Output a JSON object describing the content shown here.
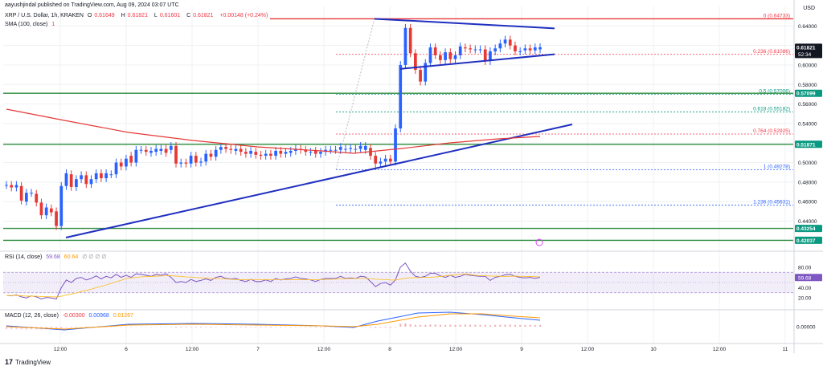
{
  "header": {
    "author": "aayushjindal published on TradingView.com, Aug 09, 2024 03:07 UTC",
    "symbol": "XRP / U.S. Dollar, 1h, KRAKEN",
    "ohlc": [
      {
        "k": "O",
        "v": "0.61649"
      },
      {
        "k": "H",
        "v": "0.61821"
      },
      {
        "k": "L",
        "v": "0.61601"
      },
      {
        "k": "C",
        "v": "0.61821"
      }
    ],
    "change": "+0.00148 (+0.24%)",
    "sma_label": "SMA (100, close)",
    "sma_value": "1",
    "currency": "USD"
  },
  "price_axis": {
    "ticks": [
      "0.64000",
      "0.62000",
      "0.60000",
      "0.58000",
      "0.56000",
      "0.54000",
      "0.52000",
      "0.50000",
      "0.48000",
      "0.46000",
      "0.44000",
      "0.42000"
    ],
    "badges": [
      {
        "text": "0.61821",
        "sub": "52:34",
        "color": "#131722",
        "price": 0.61821
      },
      {
        "text": "0.57099",
        "color": "#089981",
        "price": 0.57099
      },
      {
        "text": "0.51871",
        "color": "#089981",
        "price": 0.51871
      },
      {
        "text": "0.43254",
        "color": "#089981",
        "price": 0.43254
      },
      {
        "text": "0.42037",
        "color": "#089981",
        "price": 0.42037
      }
    ]
  },
  "time_axis": {
    "labels": [
      "12:00",
      "6",
      "12:00",
      "7",
      "12:00",
      "8",
      "12:00",
      "9",
      "12:00",
      "10",
      "12:00",
      "11"
    ]
  },
  "fib_levels": [
    {
      "label": "0 (0.64733)",
      "price": 0.64733,
      "color": "#f23645"
    },
    {
      "label": "0.236 (0.61086)",
      "price": 0.61086,
      "color": "#f23645"
    },
    {
      "label": "0.5 (0.57006)",
      "price": 0.57006,
      "color": "#089981"
    },
    {
      "label": "0.618 (0.55182)",
      "price": 0.55182,
      "color": "#089981"
    },
    {
      "label": "0.764 (0.52925)",
      "price": 0.52925,
      "color": "#f23645"
    },
    {
      "label": "1 (0.49278)",
      "price": 0.49278,
      "color": "#2962ff"
    },
    {
      "label": "1.236 (0.45631)",
      "price": 0.45631,
      "color": "#2962ff"
    }
  ],
  "rsi": {
    "label": "RSI (14, close)",
    "value": "59.68",
    "value2": "60.64",
    "ticks": [
      "80.00",
      "60.00",
      "40.00",
      "20.00"
    ]
  },
  "macd": {
    "label": "MACD (12, 26, close)",
    "v1": "-0.00300",
    "v2": "0.00968",
    "v3": "0.01267",
    "ticks": [
      "0.00000"
    ]
  },
  "brand": "TradingView",
  "chart_data": {
    "type": "candlestick",
    "title": "XRP / U.S. Dollar, 1h, KRAKEN",
    "x_labels": [
      "12:00",
      "6",
      "12:00",
      "7",
      "12:00",
      "8",
      "12:00",
      "9",
      "12:00",
      "10",
      "12:00",
      "11"
    ],
    "ylim": [
      0.41,
      0.66
    ],
    "grid": true,
    "horizontal_lines": [
      0.57099,
      0.51871,
      0.43254,
      0.42037
    ],
    "resistance_line_price": 0.6473,
    "candles": [
      {
        "o": 0.477,
        "c": 0.477
      },
      {
        "o": 0.477,
        "c": 0.4745
      },
      {
        "o": 0.4745,
        "c": 0.477
      },
      {
        "o": 0.476,
        "c": 0.461
      },
      {
        "o": 0.46,
        "c": 0.469
      },
      {
        "o": 0.469,
        "c": 0.469
      },
      {
        "o": 0.468,
        "c": 0.459
      },
      {
        "o": 0.459,
        "c": 0.446
      },
      {
        "o": 0.446,
        "c": 0.454
      },
      {
        "o": 0.453,
        "c": 0.449
      },
      {
        "o": 0.45,
        "c": 0.435
      },
      {
        "o": 0.435,
        "c": 0.476
      },
      {
        "o": 0.476,
        "c": 0.489
      },
      {
        "o": 0.488,
        "c": 0.475
      },
      {
        "o": 0.475,
        "c": 0.483
      },
      {
        "o": 0.483,
        "c": 0.487
      },
      {
        "o": 0.487,
        "c": 0.478
      },
      {
        "o": 0.478,
        "c": 0.483
      },
      {
        "o": 0.483,
        "c": 0.489
      },
      {
        "o": 0.489,
        "c": 0.484
      },
      {
        "o": 0.484,
        "c": 0.489
      },
      {
        "o": 0.488,
        "c": 0.488
      },
      {
        "o": 0.488,
        "c": 0.5
      },
      {
        "o": 0.5,
        "c": 0.496
      },
      {
        "o": 0.496,
        "c": 0.504
      },
      {
        "o": 0.507,
        "c": 0.5
      },
      {
        "o": 0.5,
        "c": 0.513
      },
      {
        "o": 0.513,
        "c": 0.513
      },
      {
        "o": 0.513,
        "c": 0.511
      },
      {
        "o": 0.51,
        "c": 0.512
      },
      {
        "o": 0.511,
        "c": 0.514
      },
      {
        "o": 0.512,
        "c": 0.514
      },
      {
        "o": 0.514,
        "c": 0.51
      },
      {
        "o": 0.513,
        "c": 0.517
      },
      {
        "o": 0.517,
        "c": 0.499
      },
      {
        "o": 0.499,
        "c": 0.5
      },
      {
        "o": 0.5,
        "c": 0.499
      },
      {
        "o": 0.499,
        "c": 0.507
      },
      {
        "o": 0.507,
        "c": 0.5
      },
      {
        "o": 0.5,
        "c": 0.501
      },
      {
        "o": 0.501,
        "c": 0.509
      },
      {
        "o": 0.509,
        "c": 0.506
      },
      {
        "o": 0.506,
        "c": 0.513
      },
      {
        "o": 0.513,
        "c": 0.516
      },
      {
        "o": 0.516,
        "c": 0.514
      },
      {
        "o": 0.514,
        "c": 0.513
      },
      {
        "o": 0.512,
        "c": 0.514
      },
      {
        "o": 0.514,
        "c": 0.511
      },
      {
        "o": 0.511,
        "c": 0.509
      },
      {
        "o": 0.509,
        "c": 0.512
      },
      {
        "o": 0.511,
        "c": 0.508
      },
      {
        "o": 0.508,
        "c": 0.507
      },
      {
        "o": 0.507,
        "c": 0.509
      },
      {
        "o": 0.509,
        "c": 0.507
      },
      {
        "o": 0.507,
        "c": 0.512
      },
      {
        "o": 0.512,
        "c": 0.509
      },
      {
        "o": 0.509,
        "c": 0.511
      },
      {
        "o": 0.51,
        "c": 0.512
      },
      {
        "o": 0.512,
        "c": 0.514
      },
      {
        "o": 0.514,
        "c": 0.513
      },
      {
        "o": 0.513,
        "c": 0.511
      },
      {
        "o": 0.511,
        "c": 0.511
      },
      {
        "o": 0.512,
        "c": 0.509
      },
      {
        "o": 0.509,
        "c": 0.511
      },
      {
        "o": 0.511,
        "c": 0.513
      },
      {
        "o": 0.513,
        "c": 0.513
      },
      {
        "o": 0.513,
        "c": 0.513
      },
      {
        "o": 0.513,
        "c": 0.516
      },
      {
        "o": 0.514,
        "c": 0.514
      },
      {
        "o": 0.514,
        "c": 0.515
      },
      {
        "o": 0.514,
        "c": 0.514
      },
      {
        "o": 0.514,
        "c": 0.517
      },
      {
        "o": 0.513,
        "c": 0.517
      },
      {
        "o": 0.515,
        "c": 0.507
      },
      {
        "o": 0.507,
        "c": 0.499
      },
      {
        "o": 0.499,
        "c": 0.501
      },
      {
        "o": 0.501,
        "c": 0.504
      },
      {
        "o": 0.504,
        "c": 0.501
      },
      {
        "o": 0.501,
        "c": 0.535
      },
      {
        "o": 0.535,
        "c": 0.6
      },
      {
        "o": 0.6,
        "c": 0.638
      },
      {
        "o": 0.638,
        "c": 0.612
      },
      {
        "o": 0.612,
        "c": 0.595
      },
      {
        "o": 0.595,
        "c": 0.583
      },
      {
        "o": 0.583,
        "c": 0.602
      },
      {
        "o": 0.602,
        "c": 0.618
      },
      {
        "o": 0.618,
        "c": 0.61
      },
      {
        "o": 0.61,
        "c": 0.605
      },
      {
        "o": 0.605,
        "c": 0.613
      },
      {
        "o": 0.613,
        "c": 0.606
      },
      {
        "o": 0.606,
        "c": 0.61
      },
      {
        "o": 0.61,
        "c": 0.619
      },
      {
        "o": 0.618,
        "c": 0.617
      },
      {
        "o": 0.617,
        "c": 0.616
      },
      {
        "o": 0.616,
        "c": 0.616
      },
      {
        "o": 0.616,
        "c": 0.616
      },
      {
        "o": 0.616,
        "c": 0.604
      },
      {
        "o": 0.604,
        "c": 0.614
      },
      {
        "o": 0.614,
        "c": 0.617
      },
      {
        "o": 0.617,
        "c": 0.622
      },
      {
        "o": 0.622,
        "c": 0.626
      },
      {
        "o": 0.626,
        "c": 0.62
      },
      {
        "o": 0.62,
        "c": 0.614
      },
      {
        "o": 0.614,
        "c": 0.614
      },
      {
        "o": 0.615,
        "c": 0.617
      },
      {
        "o": 0.617,
        "c": 0.615
      },
      {
        "o": 0.615,
        "c": 0.618
      },
      {
        "o": 0.616,
        "c": 0.6182
      }
    ]
  }
}
